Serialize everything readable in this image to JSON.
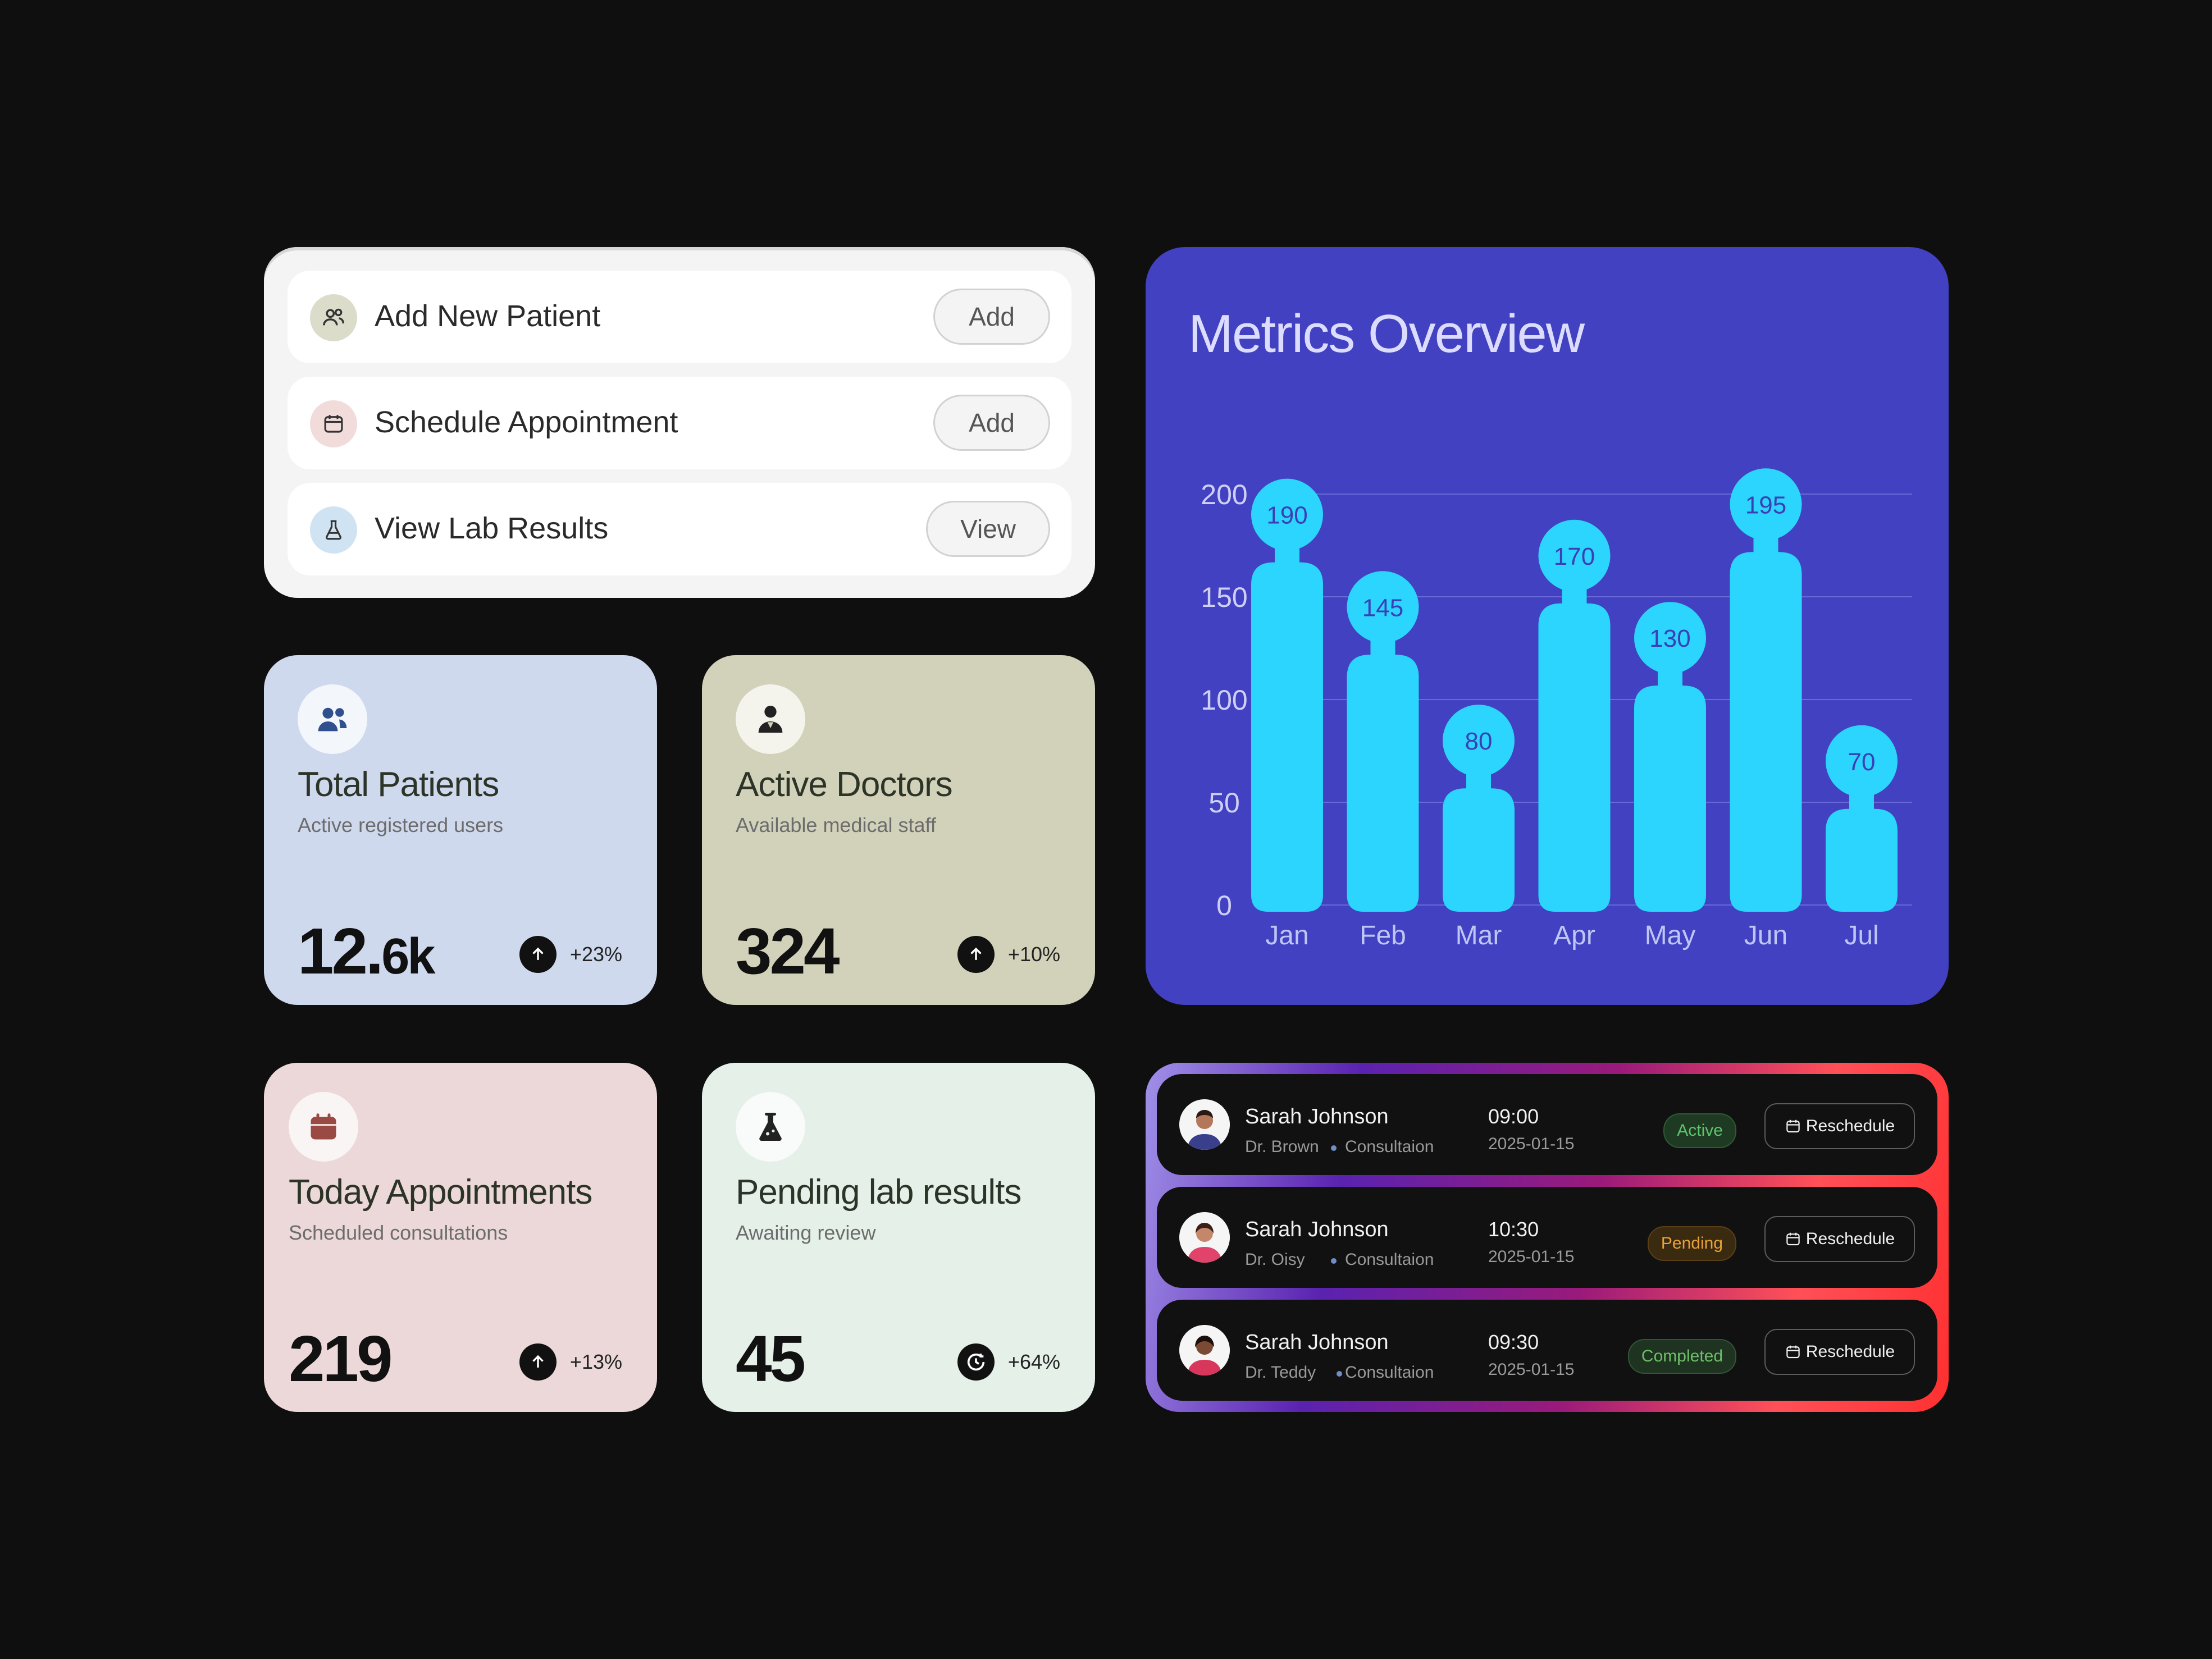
{
  "quick_actions": [
    {
      "label": "Add New Patient",
      "button": "Add",
      "icon": "users-icon",
      "icon_bg": "#dcdccb"
    },
    {
      "label": "Schedule Appointment",
      "button": "Add",
      "icon": "calendar-icon",
      "icon_bg": "#f1dcdb"
    },
    {
      "label": "View Lab Results",
      "button": "View",
      "icon": "flask-icon",
      "icon_bg": "#cfe3f3"
    }
  ],
  "metrics": [
    {
      "title": "Total Patients",
      "subtitle": "Active registered users",
      "value_main": "12.",
      "value_small": "6k",
      "trend": "+23%",
      "bg": "#cfd9ee",
      "icon": "users-icon"
    },
    {
      "title": "Active Doctors",
      "subtitle": "Available medical staff",
      "value_main": "324",
      "value_small": "",
      "trend": "+10%",
      "bg": "#d2d1b9",
      "icon": "doctor-icon"
    },
    {
      "title": "Today Appointments",
      "subtitle": "Scheduled consultations",
      "value_main": "219",
      "value_small": "",
      "trend": "+13%",
      "bg": "#ecd8d8",
      "icon": "calendar-icon"
    },
    {
      "title": "Pending lab results",
      "subtitle": "Awaiting review",
      "value_main": "45",
      "value_small": "",
      "trend": "+64%",
      "bg": "#e4f0e8",
      "icon": "flask-icon"
    }
  ],
  "chart_data": {
    "type": "bar",
    "title": "Metrics Overview",
    "categories": [
      "Jan",
      "Feb",
      "Mar",
      "Apr",
      "May",
      "Jun",
      "Jul"
    ],
    "values": [
      190,
      145,
      80,
      170,
      130,
      195,
      70
    ],
    "yticks": [
      200,
      150,
      100,
      50,
      0
    ],
    "ylim": [
      0,
      200
    ],
    "bar_color": "#2bd5fd",
    "grid": true
  },
  "appointments": [
    {
      "name": "Sarah Johnson",
      "doctor": "Dr. Brown",
      "type": "Consultaion",
      "time": "09:00",
      "date": "2025-01-15",
      "status": "Active",
      "status_color": "#5fc46e",
      "action": "Reschedule"
    },
    {
      "name": "Sarah Johnson",
      "doctor": "Dr. Oisy",
      "type": "Consultaion",
      "time": "10:30",
      "date": "2025-01-15",
      "status": "Pending",
      "status_color": "#e9a23a",
      "action": "Reschedule"
    },
    {
      "name": "Sarah Johnson",
      "doctor": "Dr. Teddy",
      "type": "Consultaion",
      "time": "09:30",
      "date": "2025-01-15",
      "status": "Completed",
      "status_color": "#6fbf6a",
      "action": "Reschedule"
    }
  ]
}
